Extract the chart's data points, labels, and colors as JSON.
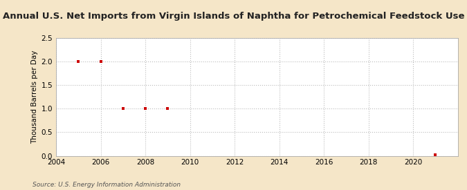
{
  "title": "Annual U.S. Net Imports from Virgin Islands of Naphtha for Petrochemical Feedstock Use",
  "ylabel": "Thousand Barrels per Day",
  "source": "Source: U.S. Energy Information Administration",
  "background_color": "#f5e6c8",
  "plot_background_color": "#ffffff",
  "data_years": [
    2005,
    2006,
    2007,
    2008,
    2009,
    2021
  ],
  "data_values": [
    2.0,
    2.0,
    1.0,
    1.0,
    1.0,
    0.02
  ],
  "marker_color": "#cc0000",
  "marker": "s",
  "marker_size": 3,
  "xlim": [
    2004,
    2022
  ],
  "ylim": [
    0.0,
    2.5
  ],
  "xticks": [
    2004,
    2006,
    2008,
    2010,
    2012,
    2014,
    2016,
    2018,
    2020
  ],
  "yticks": [
    0.0,
    0.5,
    1.0,
    1.5,
    2.0,
    2.5
  ],
  "grid_color": "#bbbbbb",
  "grid_style": ":",
  "title_fontsize": 9.5,
  "label_fontsize": 7.5,
  "tick_fontsize": 7.5,
  "source_fontsize": 6.5
}
